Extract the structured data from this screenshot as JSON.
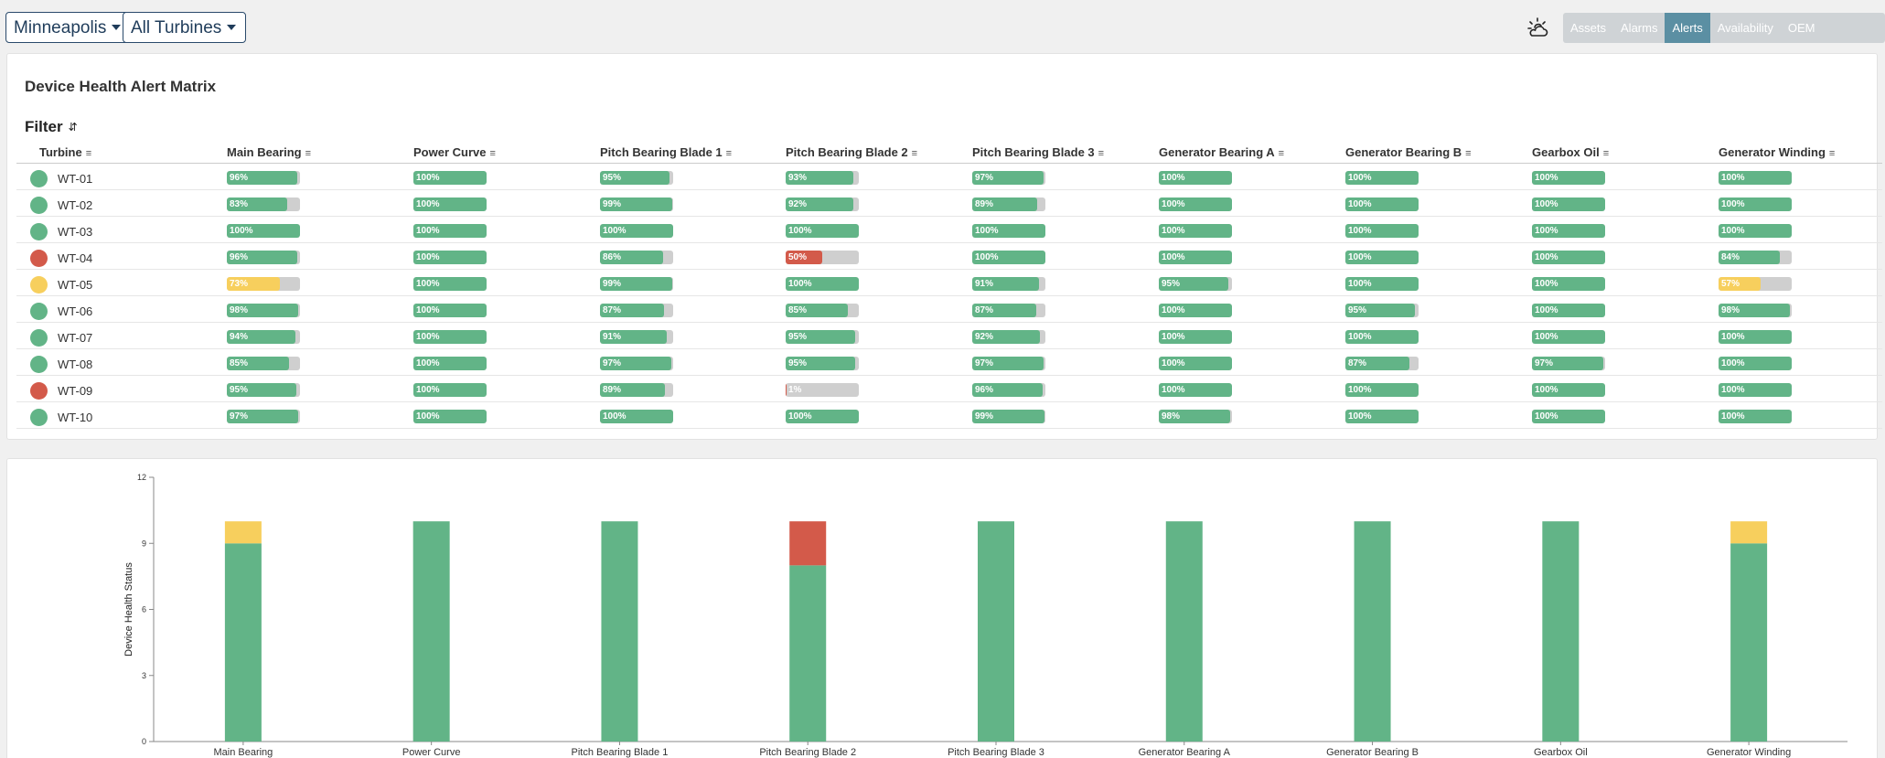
{
  "filters": {
    "location": "Minneapolis",
    "turbines": "All Turbines"
  },
  "nav": {
    "weather_icon": "weather-sun-cloud-icon",
    "tabs": [
      {
        "label": "Assets",
        "active": false
      },
      {
        "label": "Alarms",
        "active": false
      },
      {
        "label": "Alerts",
        "active": true
      },
      {
        "label": "Availability",
        "active": false
      },
      {
        "label": "OEM Comparison",
        "active": false
      }
    ]
  },
  "colors": {
    "green": "#62b487",
    "yellow": "#f7cf5d",
    "red": "#d35a4a",
    "track": "#cfcfcf"
  },
  "matrix": {
    "title": "Device Health Alert Matrix",
    "filter_label": "Filter",
    "turbine_header": "Turbine",
    "components": [
      "Main Bearing",
      "Power Curve",
      "Pitch Bearing Blade 1",
      "Pitch Bearing Blade 2",
      "Pitch Bearing Blade 3",
      "Generator Bearing A",
      "Generator Bearing B",
      "Gearbox Oil",
      "Generator Winding"
    ],
    "rows": [
      {
        "turbine": "WT-01",
        "status": "green",
        "values": [
          96,
          100,
          95,
          93,
          97,
          100,
          100,
          100,
          100
        ]
      },
      {
        "turbine": "WT-02",
        "status": "green",
        "values": [
          83,
          100,
          99,
          92,
          89,
          100,
          100,
          100,
          100
        ]
      },
      {
        "turbine": "WT-03",
        "status": "green",
        "values": [
          100,
          100,
          100,
          100,
          100,
          100,
          100,
          100,
          100
        ]
      },
      {
        "turbine": "WT-04",
        "status": "red",
        "values": [
          96,
          100,
          86,
          50,
          100,
          100,
          100,
          100,
          84
        ]
      },
      {
        "turbine": "WT-05",
        "status": "yellow",
        "values": [
          73,
          100,
          99,
          100,
          91,
          95,
          100,
          100,
          57
        ]
      },
      {
        "turbine": "WT-06",
        "status": "green",
        "values": [
          98,
          100,
          87,
          85,
          87,
          100,
          95,
          100,
          98
        ]
      },
      {
        "turbine": "WT-07",
        "status": "green",
        "values": [
          94,
          100,
          91,
          95,
          92,
          100,
          100,
          100,
          100
        ]
      },
      {
        "turbine": "WT-08",
        "status": "green",
        "values": [
          85,
          100,
          97,
          95,
          97,
          100,
          87,
          97,
          100
        ]
      },
      {
        "turbine": "WT-09",
        "status": "red",
        "values": [
          95,
          100,
          89,
          1,
          96,
          100,
          100,
          100,
          100
        ]
      },
      {
        "turbine": "WT-10",
        "status": "green",
        "values": [
          97,
          100,
          100,
          100,
          99,
          98,
          100,
          100,
          100
        ]
      }
    ],
    "bar_colors": [
      [
        "green",
        "green",
        "green",
        "green",
        "green",
        "green",
        "green",
        "green",
        "green"
      ],
      [
        "green",
        "green",
        "green",
        "green",
        "green",
        "green",
        "green",
        "green",
        "green"
      ],
      [
        "green",
        "green",
        "green",
        "green",
        "green",
        "green",
        "green",
        "green",
        "green"
      ],
      [
        "green",
        "green",
        "green",
        "red",
        "green",
        "green",
        "green",
        "green",
        "green"
      ],
      [
        "yellow",
        "green",
        "green",
        "green",
        "green",
        "green",
        "green",
        "green",
        "yellow"
      ],
      [
        "green",
        "green",
        "green",
        "green",
        "green",
        "green",
        "green",
        "green",
        "green"
      ],
      [
        "green",
        "green",
        "green",
        "green",
        "green",
        "green",
        "green",
        "green",
        "green"
      ],
      [
        "green",
        "green",
        "green",
        "green",
        "green",
        "green",
        "green",
        "green",
        "green"
      ],
      [
        "green",
        "green",
        "green",
        "red",
        "green",
        "green",
        "green",
        "green",
        "green"
      ],
      [
        "green",
        "green",
        "green",
        "green",
        "green",
        "green",
        "green",
        "green",
        "green"
      ]
    ]
  },
  "chart_data": {
    "type": "bar",
    "stacked": true,
    "categories": [
      "Main Bearing",
      "Power Curve",
      "Pitch Bearing Blade 1",
      "Pitch Bearing Blade 2",
      "Pitch Bearing Blade 3",
      "Generator Bearing A",
      "Generator Bearing B",
      "Gearbox Oil",
      "Generator Winding"
    ],
    "series": [
      {
        "color": "#62b487",
        "values": [
          9,
          10,
          10,
          8,
          10,
          10,
          10,
          10,
          9
        ]
      },
      {
        "color": "#f7cf5d",
        "values": [
          1,
          0,
          0,
          0,
          0,
          0,
          0,
          0,
          1
        ]
      },
      {
        "color": "#d35a4a",
        "values": [
          0,
          0,
          0,
          2,
          0,
          0,
          0,
          0,
          0
        ]
      }
    ],
    "ylabel": "Device Health Status",
    "xlabel": "",
    "ylim": [
      0,
      12
    ],
    "yticks": [
      0,
      3,
      6,
      9,
      12
    ],
    "grid": false
  }
}
